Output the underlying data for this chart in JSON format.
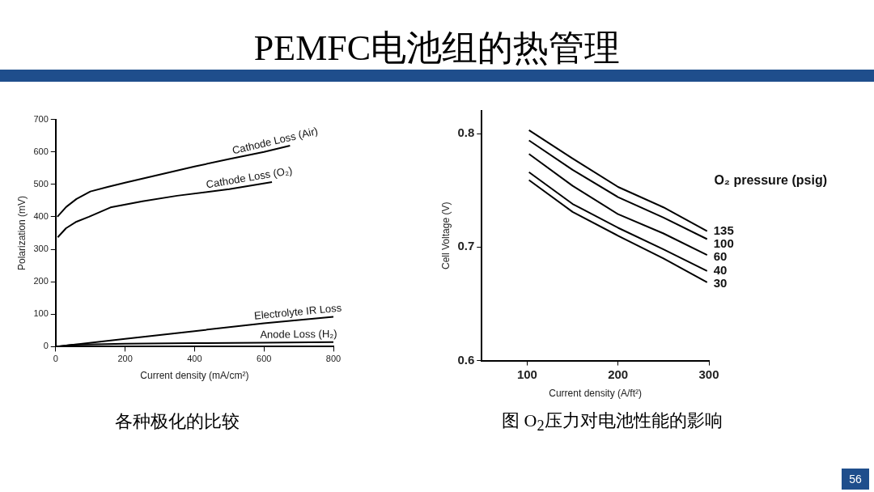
{
  "chart_data": [
    {
      "type": "other",
      "title": "PEMFC电池组的热管理",
      "annotations": [
        "56"
      ]
    },
    {
      "type": "line",
      "xlabel": "Current density (mA/cm²)",
      "ylabel": "Polarization (mV)",
      "xlim": [
        0,
        800
      ],
      "xticks": [
        0,
        200,
        400,
        600,
        800
      ],
      "ylim": [
        0,
        700
      ],
      "yticks": [
        0,
        100,
        200,
        300,
        400,
        500,
        600,
        700
      ],
      "grid": false,
      "marker": "none",
      "line_style": "solid",
      "annotations": [
        "各种极化的比较"
      ],
      "series": [
        {
          "name": "Cathode Loss (Air)",
          "color": "#000000",
          "x": [
            5,
            30,
            60,
            100,
            150,
            200,
            300,
            400,
            500,
            600,
            675
          ],
          "values": [
            400,
            430,
            455,
            478,
            492,
            505,
            530,
            555,
            578,
            600,
            619
          ]
        },
        {
          "name": "Cathode Loss (O₂)",
          "color": "#000000",
          "x": [
            6,
            30,
            60,
            96,
            158,
            250,
            350,
            500,
            623
          ],
          "values": [
            337,
            365,
            385,
            400,
            429,
            448,
            465,
            485,
            507
          ]
        },
        {
          "name": "Electrolyte IR Loss",
          "color": "#000000",
          "x": [
            0,
            200,
            400,
            600,
            800
          ],
          "values": [
            0,
            24,
            48,
            72,
            92
          ]
        },
        {
          "name": "Anode Loss (H₂)",
          "color": "#000000",
          "x": [
            0,
            50,
            200,
            400,
            600,
            800
          ],
          "values": [
            0,
            6,
            9,
            11,
            12,
            14
          ]
        }
      ]
    },
    {
      "type": "line",
      "xlabel": "Current density (A/ft²)",
      "ylabel": "Cell Voltage (V)",
      "legend_title": "O₂ pressure (psig)",
      "xlim": [
        50,
        300
      ],
      "xticks": [
        100,
        200,
        300
      ],
      "ylim": [
        0.6,
        0.82
      ],
      "yticks": [
        0.6,
        0.7,
        0.8
      ],
      "grid": false,
      "marker": "none",
      "line_style": "solid",
      "annotations": [
        "图 O$_{2}$压力对电池性能的影响"
      ],
      "series": [
        {
          "name": "135",
          "color": "#000000",
          "x": [
            102,
            150,
            200,
            250,
            298
          ],
          "values": [
            0.803,
            0.778,
            0.753,
            0.735,
            0.714
          ]
        },
        {
          "name": "100",
          "color": "#000000",
          "x": [
            102,
            150,
            200,
            250,
            298
          ],
          "values": [
            0.794,
            0.768,
            0.744,
            0.726,
            0.707
          ]
        },
        {
          "name": "60",
          "color": "#000000",
          "x": [
            102,
            150,
            200,
            250,
            298
          ],
          "values": [
            0.782,
            0.754,
            0.729,
            0.712,
            0.693
          ]
        },
        {
          "name": "40",
          "color": "#000000",
          "x": [
            102,
            150,
            200,
            250,
            298
          ],
          "values": [
            0.766,
            0.738,
            0.717,
            0.698,
            0.679
          ]
        },
        {
          "name": "30",
          "color": "#000000",
          "x": [
            102,
            150,
            200,
            250,
            298
          ],
          "values": [
            0.759,
            0.731,
            0.71,
            0.69,
            0.669
          ]
        }
      ]
    }
  ]
}
